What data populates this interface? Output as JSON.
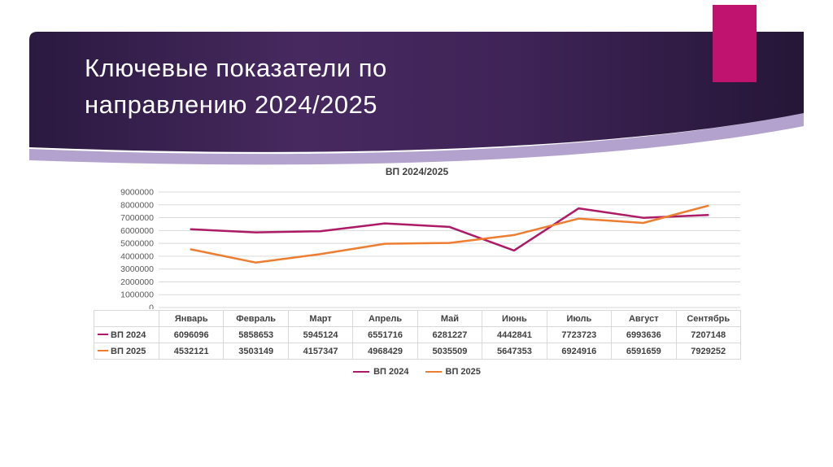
{
  "slide": {
    "title": "Ключевые показатели по направлению 2024/2025",
    "accent_color": "#c0136f",
    "banner_colors": {
      "gradient_left": "#2a1940",
      "gradient_mid": "#47295f",
      "gradient_right": "#251637",
      "bottom_band": "#b3a2ce"
    }
  },
  "chart_data": {
    "type": "line",
    "title": "ВП 2024/2025",
    "categories": [
      "Январь",
      "Февраль",
      "Март",
      "Апрель",
      "Май",
      "Июнь",
      "Июль",
      "Август",
      "Сентябрь"
    ],
    "series": [
      {
        "name": "ВП 2024",
        "color": "#ad1a66",
        "values": [
          6096096,
          5858653,
          5945124,
          6551716,
          6281227,
          4442841,
          7723723,
          6993636,
          7207148
        ]
      },
      {
        "name": "ВП 2025",
        "color": "#ed7d31",
        "values": [
          4532121,
          3503149,
          4157347,
          4968429,
          5035509,
          5647353,
          6924916,
          6591659,
          7929252
        ]
      }
    ],
    "ylim": [
      0,
      9000000
    ],
    "ytick_step": 1000000,
    "grid": true,
    "legend_position": "bottom",
    "show_data_table": true,
    "grid_color": "#d9d9d9",
    "axis_label_color": "#595959"
  }
}
